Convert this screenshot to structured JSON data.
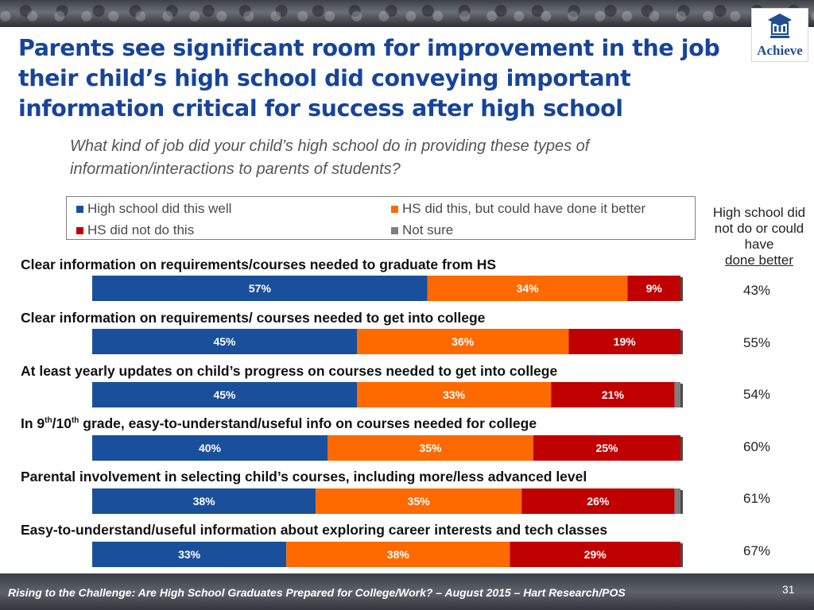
{
  "header": {
    "title": "Parents see significant room for improvement in the job their child’s high school did conveying important information critical for success after high school",
    "subtitle": "What kind of job did your child’s high school do in providing these types of information/interactions to parents of students?",
    "logo_text": "Achieve"
  },
  "side_column": {
    "header_line1": "High school did not do or could have",
    "header_line2": "done better"
  },
  "footer": {
    "text": "Rising to the Challenge:  Are High School Graduates Prepared for College/Work? – August 2015 – Hart Research/POS",
    "page_number": "31"
  },
  "chart_data": {
    "type": "bar",
    "orientation": "horizontal-stacked-100",
    "question": "What kind of job did your child’s high school do in providing these types of information/interactions to parents of students?",
    "legend": [
      {
        "name": "High school did this well",
        "color": "#1a4f9c"
      },
      {
        "name": "HS did this, but could have done it better",
        "color": "#ff6a00"
      },
      {
        "name": "HS did not do this",
        "color": "#c00000"
      },
      {
        "name": "Not sure",
        "color": "#7f7f7f"
      }
    ],
    "categories": [
      {
        "pre": "Clear information on requirements/courses needed to graduate from HS",
        "sup1": "",
        "mid": "",
        "sup2": "",
        "post": ""
      },
      {
        "pre": "Clear information on requirements/ courses needed to get into college",
        "sup1": "",
        "mid": "",
        "sup2": "",
        "post": ""
      },
      {
        "pre": "At least yearly updates on child’s progress on courses needed to get into college",
        "sup1": "",
        "mid": "",
        "sup2": "",
        "post": ""
      },
      {
        "pre": "In 9",
        "sup1": "th",
        "mid": "/10",
        "sup2": "th",
        "post": " grade, easy-to-understand/useful info on courses needed for college"
      },
      {
        "pre": "Parental involvement in selecting child’s courses, including more/less advanced level",
        "sup1": "",
        "mid": "",
        "sup2": "",
        "post": ""
      },
      {
        "pre": "Easy-to-understand/useful information about exploring career interests and tech classes",
        "sup1": "",
        "mid": "",
        "sup2": "",
        "post": ""
      }
    ],
    "series": [
      {
        "name": "High school did this well",
        "values": [
          57,
          45,
          45,
          40,
          38,
          33
        ],
        "labels": [
          "57%",
          "45%",
          "45%",
          "40%",
          "38%",
          "33%"
        ]
      },
      {
        "name": "HS did this, but could have done it better",
        "values": [
          34,
          36,
          33,
          35,
          35,
          38
        ],
        "labels": [
          "34%",
          "36%",
          "33%",
          "35%",
          "35%",
          "38%"
        ]
      },
      {
        "name": "HS did not do this",
        "values": [
          9,
          19,
          21,
          25,
          26,
          29
        ],
        "labels": [
          "9%",
          "19%",
          "21%",
          "25%",
          "26%",
          "29%"
        ]
      },
      {
        "name": "Not sure",
        "values": [
          0,
          0,
          1,
          0,
          1,
          0
        ],
        "labels": [
          "",
          "",
          "",
          "",
          "",
          ""
        ]
      }
    ],
    "side_values": [
      "43%",
      "55%",
      "54%",
      "60%",
      "61%",
      "67%"
    ],
    "xlim": [
      0,
      100
    ]
  }
}
